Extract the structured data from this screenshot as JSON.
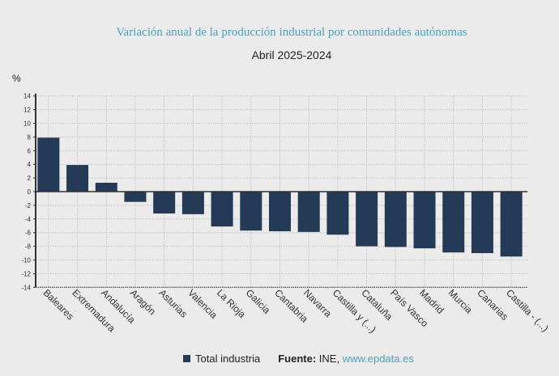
{
  "chart_data": {
    "type": "bar",
    "title": "Variación anual de la producción industrial por comunidades autónomas",
    "subtitle": "Abril 2025-2024",
    "ylabel": "%",
    "ylim": [
      -14,
      14
    ],
    "yticks": [
      14,
      12,
      10,
      8,
      6,
      4,
      2,
      0,
      -2,
      -4,
      -6,
      -8,
      -10,
      -12,
      -14
    ],
    "grid": true,
    "legend_placement": "bottom",
    "categories": [
      "Baleares",
      "Extremadura",
      "Andalucía",
      "Aragón",
      "Asturias",
      "Valencia",
      "La Rioja",
      "Galicia",
      "Cantabria",
      "Navarra",
      "Castilla y (...)",
      "Cataluña",
      "País Vasco",
      "Madrid",
      "Murcia",
      "Canarias",
      "Castilla - (...)"
    ],
    "series": [
      {
        "name": "Total industria",
        "color": "#253a57",
        "values": [
          7.9,
          3.9,
          1.3,
          -1.5,
          -3.2,
          -3.3,
          -5.1,
          -5.7,
          -5.8,
          -5.9,
          -6.3,
          -8.0,
          -8.1,
          -8.3,
          -8.9,
          -9.0,
          -9.5
        ]
      }
    ]
  },
  "footer": {
    "source_label": "Fuente:",
    "source_text": " INE, ",
    "source_link": "www.epdata.es"
  }
}
